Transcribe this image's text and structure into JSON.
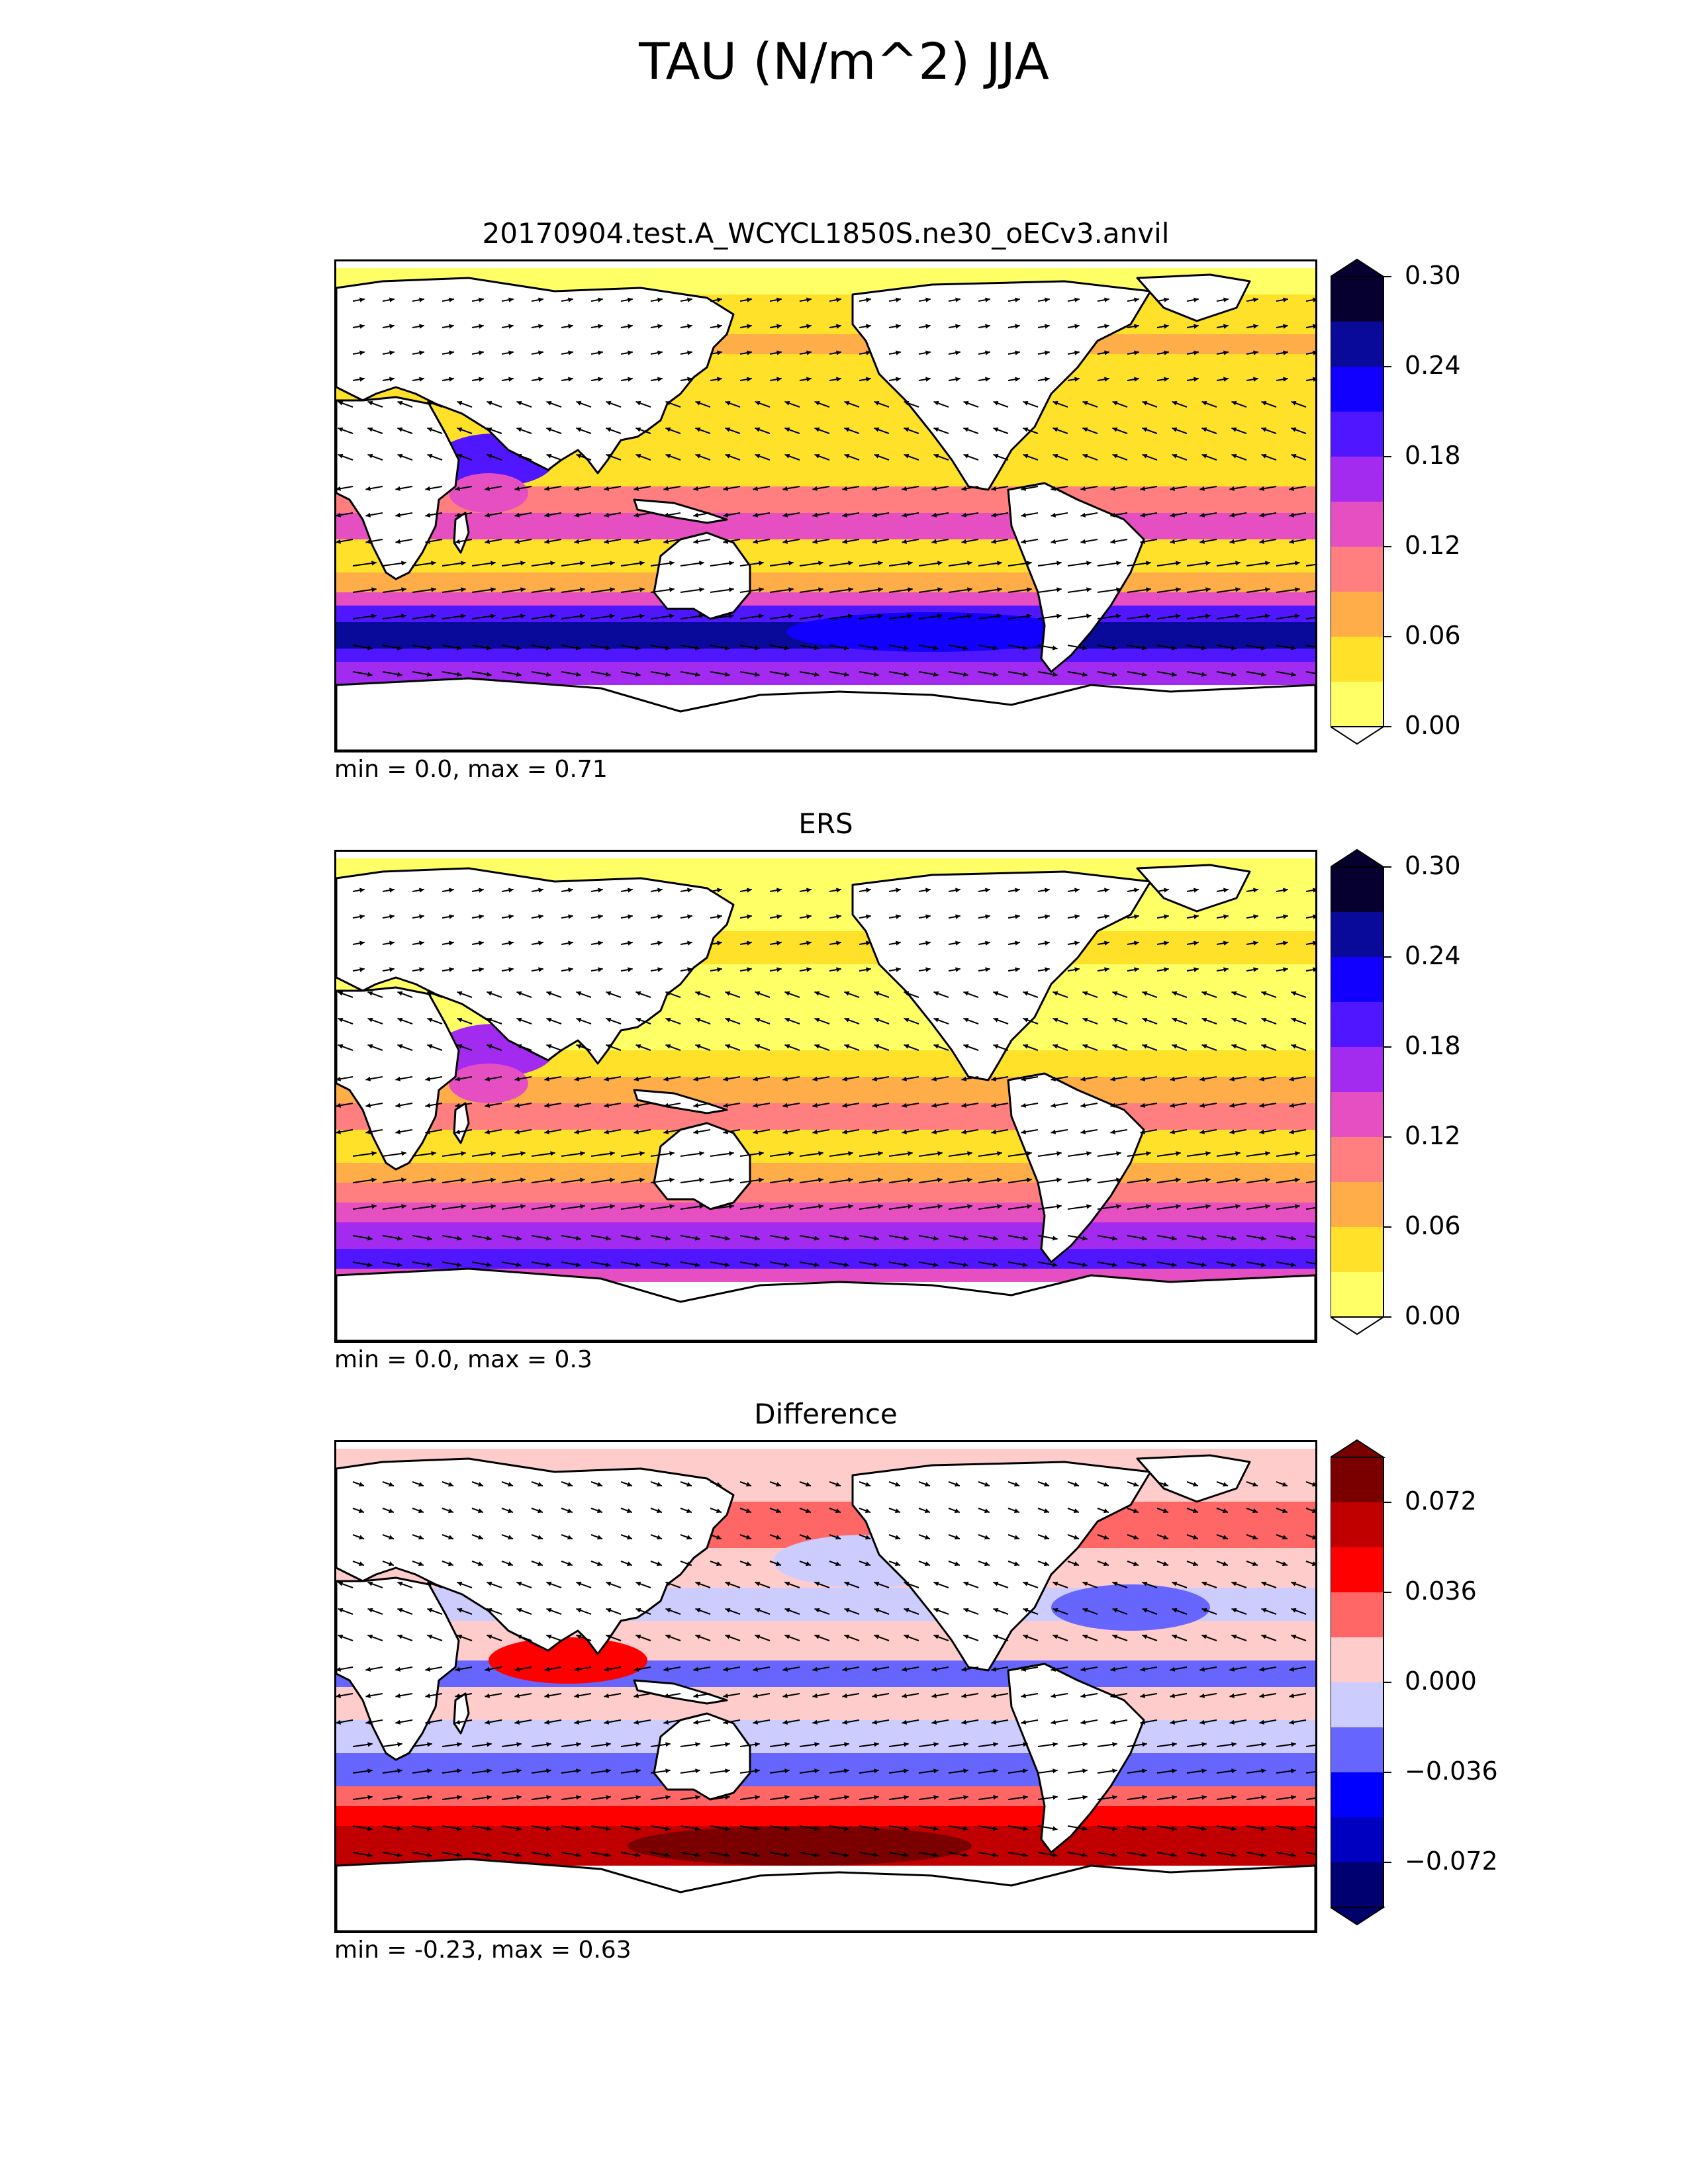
{
  "figure": {
    "title": "TAU (N/m^2) JJA"
  },
  "panels": [
    {
      "title": "20170904.test.A_WCYCL1850S.ne30_oECv3.anvil",
      "stats": "min = 0.0, max = 0.71",
      "palette": "wind",
      "colorbar": {
        "extend_top_color": "#060030",
        "extend_bottom_color": "#ffffff",
        "levels": [
          "#ffff66",
          "#ffe12a",
          "#ffad48",
          "#ff7f80",
          "#e64fc2",
          "#a32bf0",
          "#5016ff",
          "#1200ff",
          "#0a0a9a",
          "#060030"
        ],
        "ticks": [
          "0.30",
          "0.24",
          "0.18",
          "0.12",
          "0.06",
          "0.00"
        ]
      }
    },
    {
      "title": "ERS",
      "stats": "min = 0.0, max = 0.3",
      "palette": "wind",
      "colorbar": {
        "extend_top_color": "#060030",
        "extend_bottom_color": "#ffffff",
        "levels": [
          "#ffff66",
          "#ffe12a",
          "#ffad48",
          "#ff7f80",
          "#e64fc2",
          "#a32bf0",
          "#5016ff",
          "#1200ff",
          "#0a0a9a",
          "#060030"
        ],
        "ticks": [
          "0.30",
          "0.24",
          "0.18",
          "0.12",
          "0.06",
          "0.00"
        ]
      }
    },
    {
      "title": "Difference",
      "stats": "min = -0.23, max = 0.63",
      "palette": "diff",
      "colorbar": {
        "extend_top_color": "#7a0000",
        "extend_bottom_color": "#00006b",
        "levels": [
          "#000070",
          "#0000c0",
          "#0000ff",
          "#6666ff",
          "#ccccff",
          "#ffcccc",
          "#ff6666",
          "#ff0000",
          "#c00000",
          "#7a0000"
        ],
        "ticks": [
          "0.072",
          "0.036",
          "0.000",
          "−0.036",
          "−0.072"
        ]
      }
    }
  ]
}
